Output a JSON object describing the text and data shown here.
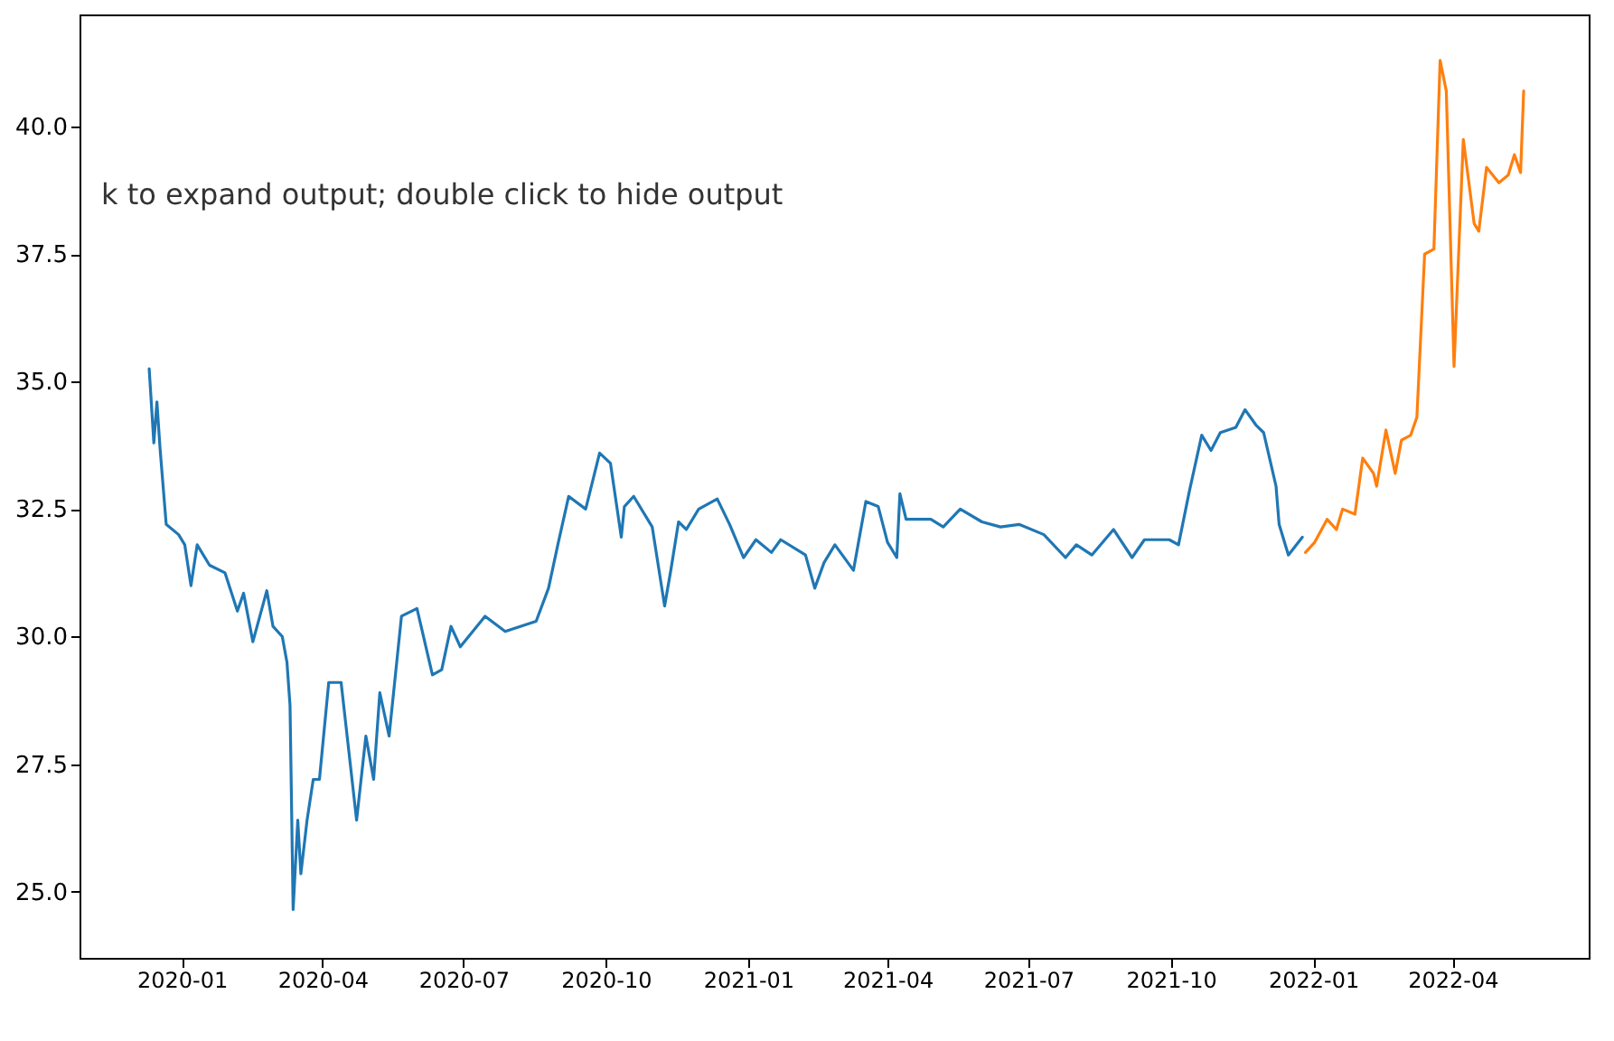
{
  "chart_data": {
    "type": "line",
    "annotations": [
      "k to expand output; double click to hide output"
    ],
    "xlim": [
      "2019-10-27",
      "2022-06-28"
    ],
    "xticks": [
      "2020-01",
      "2020-04",
      "2020-07",
      "2020-10",
      "2021-01",
      "2021-04",
      "2021-07",
      "2021-10",
      "2022-01",
      "2022-04"
    ],
    "ylim": [
      23.7,
      42.2
    ],
    "yticks": [
      {
        "value": 25,
        "label": "25.0"
      },
      {
        "value": 27.5,
        "label": "27.5"
      },
      {
        "value": 30,
        "label": "30.0"
      },
      {
        "value": 32.5,
        "label": "32.5"
      },
      {
        "value": 35,
        "label": "35.0"
      },
      {
        "value": 37.5,
        "label": "37.5"
      },
      {
        "value": 40,
        "label": "40.0"
      }
    ],
    "series": [
      {
        "color": "#1f77b4",
        "x": [
          "2019-12-11",
          "2019-12-14",
          "2019-12-16",
          "2019-12-18",
          "2019-12-22",
          "2019-12-30",
          "2020-01-03",
          "2020-01-07",
          "2020-01-11",
          "2020-01-19",
          "2020-01-29",
          "2020-02-06",
          "2020-02-10",
          "2020-02-16",
          "2020-02-25",
          "2020-02-29",
          "2020-03-06",
          "2020-03-09",
          "2020-03-11",
          "2020-03-13",
          "2020-03-16",
          "2020-03-18",
          "2020-03-22",
          "2020-03-26",
          "2020-03-30",
          "2020-04-05",
          "2020-04-13",
          "2020-04-23",
          "2020-04-29",
          "2020-05-04",
          "2020-05-08",
          "2020-05-14",
          "2020-05-22",
          "2020-06-01",
          "2020-06-11",
          "2020-06-17",
          "2020-06-23",
          "2020-06-29",
          "2020-07-15",
          "2020-07-28",
          "2020-08-17",
          "2020-08-25",
          "2020-08-31",
          "2020-09-07",
          "2020-09-18",
          "2020-09-27",
          "2020-10-04",
          "2020-10-11",
          "2020-10-13",
          "2020-10-19",
          "2020-10-31",
          "2020-11-08",
          "2020-11-12",
          "2020-11-17",
          "2020-11-22",
          "2020-11-30",
          "2020-12-12",
          "2020-12-20",
          "2020-12-29",
          "2021-01-06",
          "2021-01-16",
          "2021-01-22",
          "2021-02-07",
          "2021-02-13",
          "2021-02-19",
          "2021-02-26",
          "2021-03-10",
          "2021-03-18",
          "2021-03-26",
          "2021-04-01",
          "2021-04-07",
          "2021-04-09",
          "2021-04-13",
          "2021-04-29",
          "2021-05-07",
          "2021-05-18",
          "2021-06-01",
          "2021-06-13",
          "2021-06-25",
          "2021-07-11",
          "2021-07-25",
          "2021-08-01",
          "2021-08-11",
          "2021-08-25",
          "2021-09-06",
          "2021-09-14",
          "2021-09-30",
          "2021-10-06",
          "2021-10-13",
          "2021-10-21",
          "2021-10-27",
          "2021-11-02",
          "2021-11-12",
          "2021-11-18",
          "2021-11-25",
          "2021-11-30",
          "2021-12-08",
          "2021-12-10",
          "2021-12-16",
          "2021-12-25"
        ],
        "values": [
          35.25,
          33.8,
          34.6,
          33.7,
          32.2,
          32.0,
          31.8,
          31.0,
          31.8,
          31.4,
          31.25,
          30.5,
          30.85,
          29.9,
          30.9,
          30.2,
          30.0,
          29.5,
          28.65,
          24.65,
          26.4,
          25.35,
          26.4,
          27.2,
          27.2,
          29.1,
          29.1,
          26.4,
          28.05,
          27.2,
          28.9,
          28.05,
          30.4,
          30.55,
          29.25,
          29.35,
          30.2,
          29.8,
          30.4,
          30.1,
          30.3,
          30.95,
          31.8,
          32.75,
          32.5,
          33.6,
          33.4,
          31.95,
          32.55,
          32.75,
          32.15,
          30.6,
          31.3,
          32.25,
          32.1,
          32.5,
          32.7,
          32.2,
          31.55,
          31.9,
          31.65,
          31.9,
          31.6,
          30.95,
          31.45,
          31.8,
          31.3,
          32.65,
          32.55,
          31.85,
          31.55,
          32.8,
          32.3,
          32.3,
          32.15,
          32.5,
          32.25,
          32.15,
          32.2,
          32.0,
          31.55,
          31.8,
          31.6,
          32.1,
          31.55,
          31.9,
          31.9,
          31.8,
          32.85,
          33.95,
          33.65,
          34.0,
          34.1,
          34.45,
          34.15,
          34.0,
          32.95,
          32.2,
          31.6,
          31.95
        ]
      },
      {
        "color": "#ff7f0e",
        "x": [
          "2021-12-27",
          "2022-01-02",
          "2022-01-10",
          "2022-01-16",
          "2022-01-20",
          "2022-01-28",
          "2022-02-02",
          "2022-02-09",
          "2022-02-11",
          "2022-02-17",
          "2022-02-23",
          "2022-02-27",
          "2022-03-05",
          "2022-03-09",
          "2022-03-14",
          "2022-03-20",
          "2022-03-24",
          "2022-03-28",
          "2022-04-02",
          "2022-04-08",
          "2022-04-15",
          "2022-04-18",
          "2022-04-23",
          "2022-05-01",
          "2022-05-07",
          "2022-05-11",
          "2022-05-15",
          "2022-05-17"
        ],
        "values": [
          31.65,
          31.85,
          32.3,
          32.1,
          32.5,
          32.4,
          33.5,
          33.2,
          32.95,
          34.05,
          33.2,
          33.85,
          33.95,
          34.3,
          37.5,
          37.6,
          41.3,
          40.7,
          35.3,
          39.75,
          38.1,
          37.95,
          39.2,
          38.9,
          39.05,
          39.45,
          39.1,
          40.7
        ]
      }
    ]
  }
}
